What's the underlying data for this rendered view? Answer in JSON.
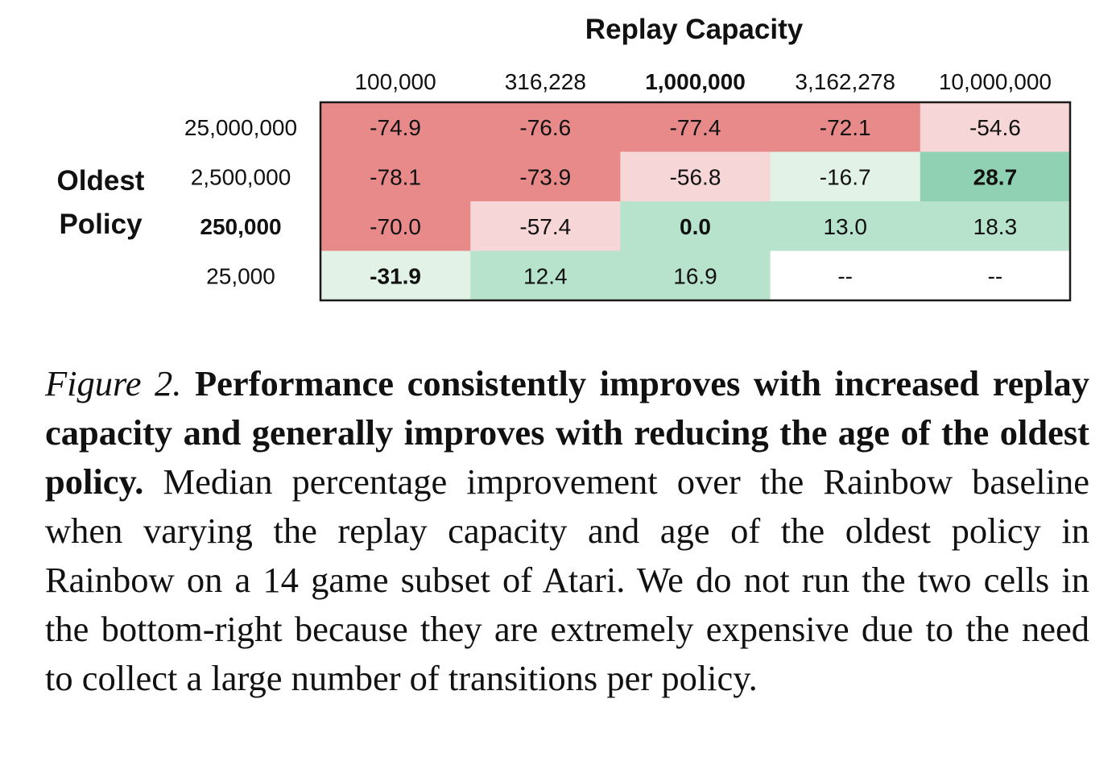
{
  "chart_data": {
    "type": "heatmap",
    "title": "",
    "xlabel": "Replay Capacity",
    "ylabel": "Oldest Policy",
    "x_categories": [
      "100,000",
      "316,228",
      "1,000,000",
      "3,162,278",
      "10,000,000"
    ],
    "y_categories": [
      "25,000,000",
      "2,500,000",
      "250,000",
      "25,000"
    ],
    "bold_x_category": "1,000,000",
    "bold_y_category": "250,000",
    "values": [
      [
        -74.9,
        -76.6,
        -77.4,
        -72.1,
        -54.6
      ],
      [
        -78.1,
        -73.9,
        -56.8,
        -16.7,
        28.7
      ],
      [
        -70.0,
        -57.4,
        0.0,
        13.0,
        18.3
      ],
      [
        -31.9,
        12.4,
        16.9,
        null,
        null
      ]
    ],
    "cell_labels": [
      [
        "-74.9",
        "-76.6",
        "-77.4",
        "-72.1",
        "-54.6"
      ],
      [
        "-78.1",
        "-73.9",
        "-56.8",
        "-16.7",
        "28.7"
      ],
      [
        "-70.0",
        "-57.4",
        "0.0",
        "13.0",
        "18.3"
      ],
      [
        "-31.9",
        "12.4",
        "16.9",
        "--",
        "--"
      ]
    ],
    "bold_cells": [
      [
        1,
        4
      ],
      [
        2,
        2
      ],
      [
        3,
        0
      ]
    ],
    "missing_label": "--",
    "colors": {
      "negative_strong": "#e8898a",
      "negative_medium": "#eea09f",
      "negative_light": "#f6d6d6",
      "positive_light": "#e2f2e7",
      "positive_medium": "#b7e2cc",
      "positive_strong": "#91d1b3",
      "missing": "#ffffff",
      "border": "#1a1a1a",
      "text": "#111111"
    }
  },
  "caption": {
    "label": "Figure 2.",
    "bold": "Performance consistently improves with increased replay capacity and generally improves with reducing the age of the oldest policy.",
    "text": "Median percentage improvement over the Rainbow baseline when varying the replay capacity and age of the oldest policy in Rainbow on a 14 game subset of Atari. We do not run the two cells in the bottom-right because they are extremely expensive due to the need to collect a large number of transitions per policy."
  }
}
